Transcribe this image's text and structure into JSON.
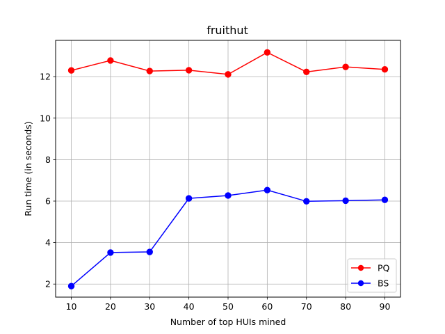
{
  "chart_data": {
    "type": "line",
    "title": "fruithut",
    "xlabel": "Number of top HUIs mined",
    "ylabel": "Run time (in seconds)",
    "x": [
      10,
      20,
      30,
      40,
      50,
      60,
      70,
      80,
      90
    ],
    "xlim": [
      6,
      94
    ],
    "ylim": [
      1.37,
      13.75
    ],
    "xticks": [
      10,
      20,
      30,
      40,
      50,
      60,
      70,
      80,
      90
    ],
    "yticks": [
      2,
      4,
      6,
      8,
      10,
      12
    ],
    "grid": true,
    "legend_position": "lower-right",
    "series": [
      {
        "name": "PQ",
        "color": "#ff0000",
        "marker": "circle",
        "values": [
          12.3,
          12.78,
          12.27,
          12.31,
          12.11,
          13.17,
          12.23,
          12.47,
          12.35
        ]
      },
      {
        "name": "BS",
        "color": "#0000ff",
        "marker": "circle",
        "values": [
          1.9,
          3.52,
          3.55,
          6.13,
          6.27,
          6.53,
          5.99,
          6.02,
          6.06
        ]
      }
    ]
  }
}
